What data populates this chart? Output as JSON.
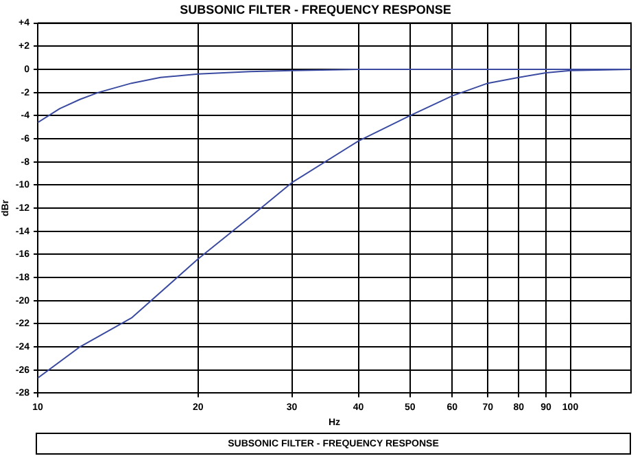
{
  "chart_data": {
    "type": "line",
    "title": "SUBSONIC FILTER - FREQUENCY RESPONSE",
    "xlabel": "Hz",
    "ylabel": "dBr",
    "log": "x",
    "grid": true,
    "legend": false,
    "marker": "none",
    "line_style": "solid",
    "xlim": [
      10,
      130
    ],
    "xticks": [
      10,
      20,
      30,
      40,
      50,
      60,
      70,
      80,
      90,
      100
    ],
    "ylim": [
      -28,
      4
    ],
    "yticks": [
      {
        "value": 4,
        "label": "+4"
      },
      {
        "value": 2,
        "label": "+2"
      },
      0,
      -2,
      -4,
      -6,
      -8,
      -10,
      -12,
      -14,
      -16,
      -18,
      -20,
      -22,
      -24,
      -26,
      -28
    ],
    "series": [
      {
        "color": "#3a4aa0",
        "x": [
          10,
          11,
          12,
          13,
          15,
          17,
          20,
          25,
          30,
          40,
          60,
          130
        ],
        "values": [
          -4.6,
          -3.4,
          -2.6,
          -2.0,
          -1.2,
          -0.7,
          -0.4,
          -0.2,
          -0.1,
          0,
          0,
          0
        ]
      },
      {
        "color": "#3a4aa0",
        "x": [
          10,
          12,
          15,
          20,
          25,
          30,
          40,
          50,
          60,
          70,
          80,
          90,
          100,
          130
        ],
        "values": [
          -26.7,
          -24,
          -21.5,
          -16.4,
          -12.8,
          -9.8,
          -6.2,
          -4,
          -2.3,
          -1.2,
          -0.7,
          -0.3,
          -0.1,
          0
        ]
      }
    ],
    "annotations": [
      "SUBSONIC FILTER - FREQUENCY RESPONSE"
    ]
  }
}
